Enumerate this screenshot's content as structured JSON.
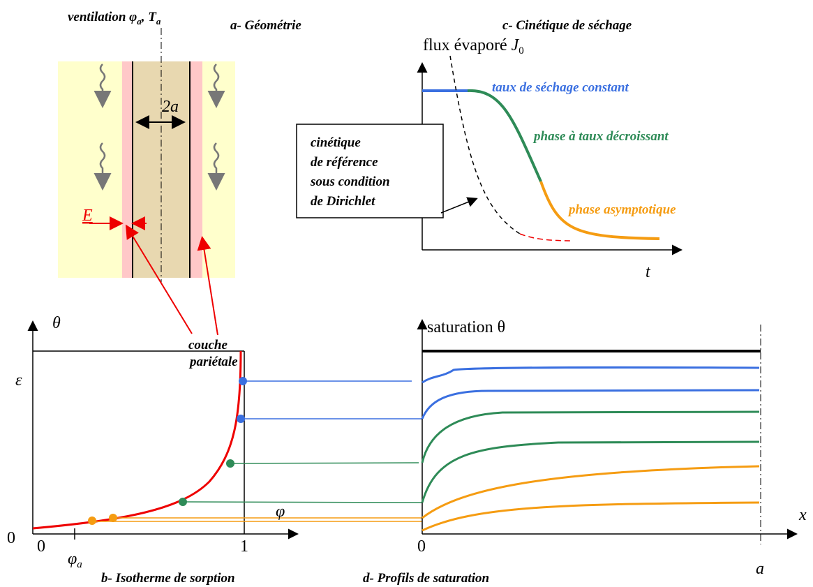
{
  "geometry": {
    "title": "a- Géométrie",
    "ventilation": {
      "text": "ventilation ",
      "phi": "φ",
      "phi_sub": "a",
      "sep": ", T",
      "t_sub": "a"
    },
    "width_label": "2a",
    "layer_thickness": "E",
    "layer_label": [
      "couche",
      "pariétale"
    ]
  },
  "kinetics": {
    "title": "c- Cinétique de séchage",
    "y_label": {
      "text": "flux évaporé ",
      "j": "J",
      "j_sub": "0"
    },
    "x_label": "t",
    "constant": "taux de séchage constant",
    "decreasing": "phase  à  taux  décroissant",
    "asymptotic": "phase asymptotique",
    "reference_box": [
      "cinétique",
      "de référence",
      "sous condition",
      "de Dirichlet"
    ]
  },
  "isotherm": {
    "title": "b- Isotherme de sorption",
    "y_label": "θ",
    "epsilon": "ε",
    "origin": "0",
    "x_zero": "0",
    "x_one": "1",
    "phi_a": {
      "text": "φ",
      "sub": "a"
    },
    "x_label": "φ"
  },
  "profiles": {
    "title": "d- Profils de saturation",
    "y_label": "saturation θ",
    "x_label": "x",
    "x_zero": "0",
    "x_end": "a"
  }
}
